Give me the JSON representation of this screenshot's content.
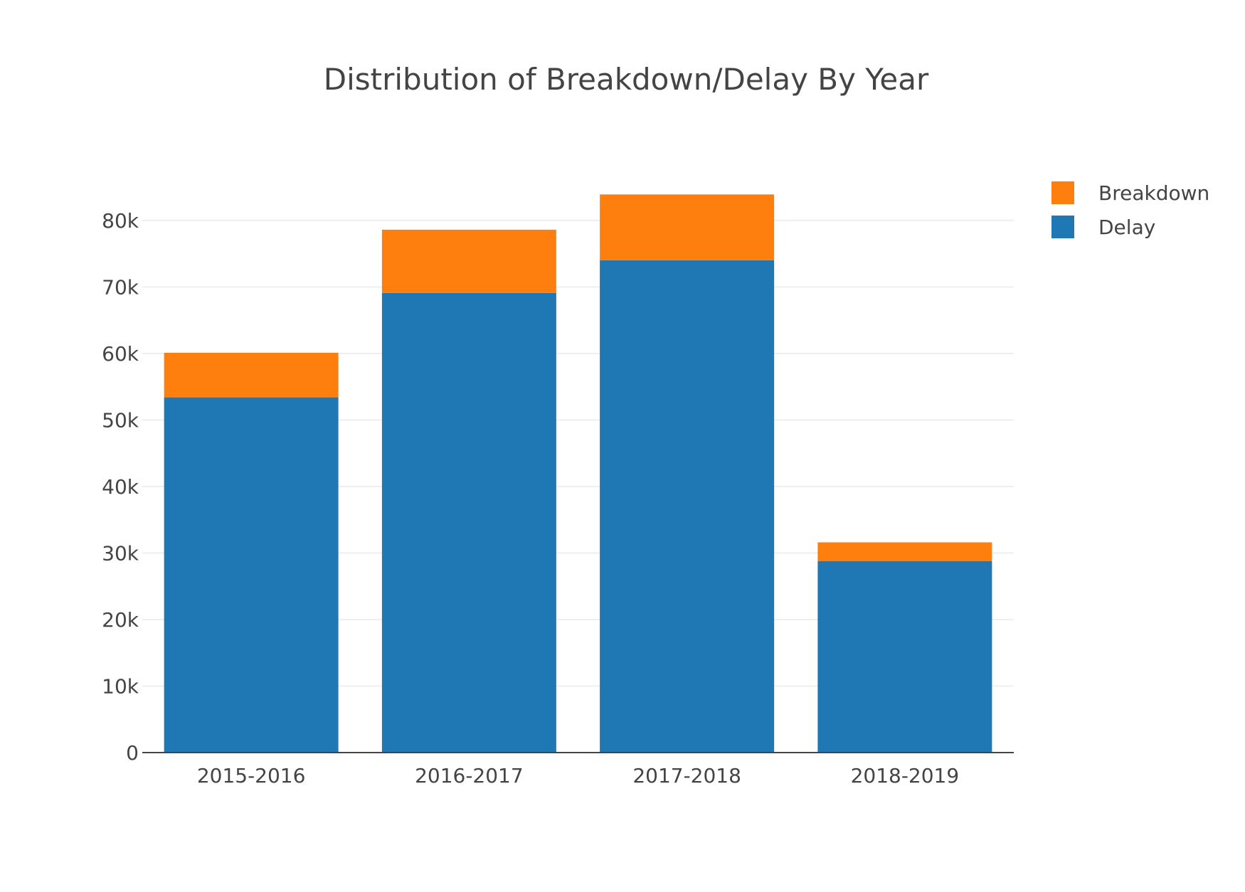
{
  "chart_data": {
    "type": "bar",
    "barmode": "stack",
    "title": "Distribution of Breakdown/Delay By Year",
    "xlabel": "",
    "ylabel": "",
    "categories": [
      "2015-2016",
      "2016-2017",
      "2017-2018",
      "2018-2019"
    ],
    "series": [
      {
        "name": "Delay",
        "color": "#1f77b4",
        "values": [
          53400,
          69100,
          74000,
          28800
        ]
      },
      {
        "name": "Breakdown",
        "color": "#ff7f0e",
        "values": [
          6700,
          9500,
          9900,
          2800
        ]
      }
    ],
    "ylim": [
      0,
      88000
    ],
    "yticks": [
      0,
      10000,
      20000,
      30000,
      40000,
      50000,
      60000,
      70000,
      80000
    ],
    "ytick_labels": [
      "0",
      "10k",
      "20k",
      "30k",
      "40k",
      "50k",
      "60k",
      "70k",
      "80k"
    ],
    "grid": true,
    "legend": {
      "position": "top-right",
      "items": [
        {
          "name": "Breakdown",
          "color": "#ff7f0e"
        },
        {
          "name": "Delay",
          "color": "#1f77b4"
        }
      ]
    }
  }
}
